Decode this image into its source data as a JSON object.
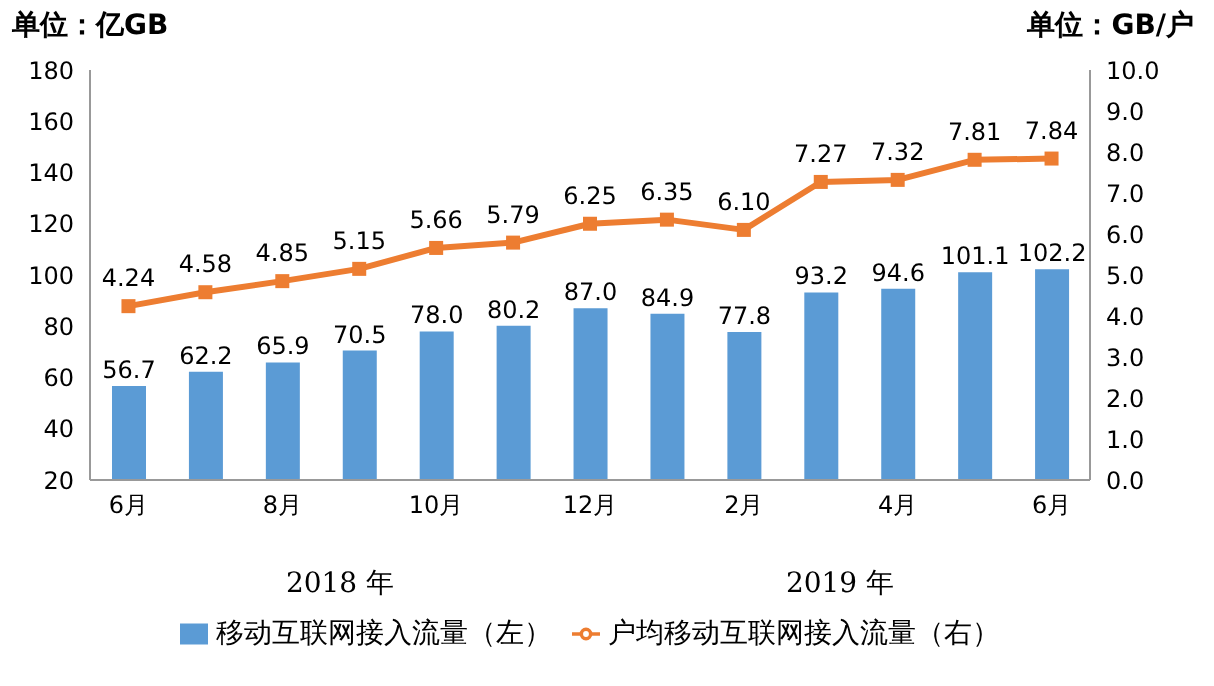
{
  "chart_data": {
    "type": "bar",
    "ylabel": "单位：亿GB",
    "y2label": "单位：GB/户",
    "categories": [
      "6月",
      null,
      "8月",
      null,
      "10月",
      null,
      "12月",
      null,
      "2月",
      null,
      "4月",
      null,
      "6月"
    ],
    "series": [
      {
        "name": "移动互联网接入流量（左）",
        "color": "#5b9bd5",
        "values": [
          56.7,
          62.2,
          65.9,
          70.5,
          78.0,
          80.2,
          87.0,
          84.9,
          77.8,
          93.2,
          94.6,
          101.1,
          102.2
        ],
        "value_labels": [
          "56.7",
          "62.2",
          "65.9",
          "70.5",
          "78.0",
          "80.2",
          "87.0",
          "84.9",
          "77.8",
          "93.2",
          "94.6",
          "101.1",
          "102.2"
        ]
      },
      {
        "name": "户均移动互联网接入流量（右）",
        "type": "line",
        "axis": "y2",
        "color": "#ed7d31",
        "marker": "square",
        "values": [
          4.24,
          4.58,
          4.85,
          5.15,
          5.66,
          5.79,
          6.25,
          6.35,
          6.1,
          7.27,
          7.32,
          7.81,
          7.84
        ],
        "value_labels": [
          "4.24",
          "4.58",
          "4.85",
          "5.15",
          "5.66",
          "5.79",
          "6.25",
          "6.35",
          "6.10",
          "7.27",
          "7.32",
          "7.81",
          "7.84"
        ]
      }
    ],
    "ylim": [
      20,
      180
    ],
    "yticks": [
      20,
      40,
      60,
      80,
      100,
      120,
      140,
      160,
      180
    ],
    "y2lim": [
      0,
      10
    ],
    "y2ticks": [
      {
        "value": 0,
        "label": "0.0"
      },
      {
        "value": 1,
        "label": "1.0"
      },
      {
        "value": 2,
        "label": "2.0"
      },
      {
        "value": 3,
        "label": "3.0"
      },
      {
        "value": 4,
        "label": "4.0"
      },
      {
        "value": 5,
        "label": "5.0"
      },
      {
        "value": 6,
        "label": "6.0"
      },
      {
        "value": 7,
        "label": "7.0"
      },
      {
        "value": 8,
        "label": "8.0"
      },
      {
        "value": 9,
        "label": "9.0"
      },
      {
        "value": 10,
        "label": "10.0"
      }
    ],
    "annotations": [
      "2018 年",
      "2019 年"
    ],
    "legend": "bottom"
  }
}
